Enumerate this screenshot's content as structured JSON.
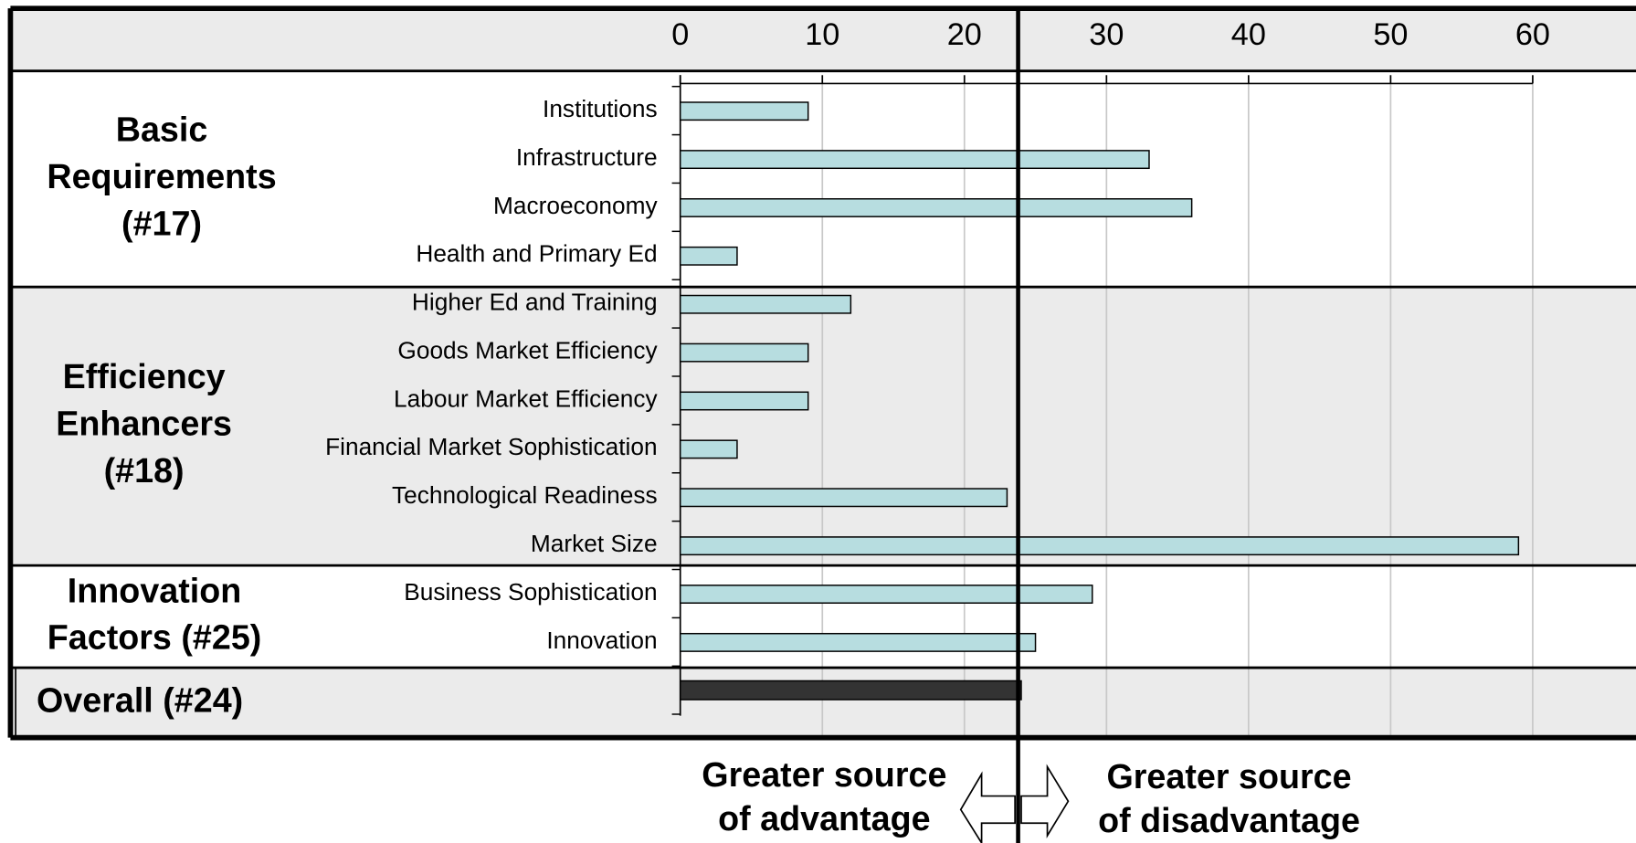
{
  "chart_data": {
    "type": "bar",
    "xlim": [
      0,
      60
    ],
    "xticks": [
      0,
      10,
      20,
      30,
      40,
      50,
      60
    ],
    "grid": true,
    "color": "#b7dde0",
    "groups": [
      {
        "label_lines": [
          "Basic",
          "Requirements",
          "(#17)"
        ],
        "categories": [
          "Institutions",
          "Infrastructure",
          "Macroeconomy",
          "Health and Primary Ed"
        ],
        "values": [
          9,
          33,
          36,
          4
        ]
      },
      {
        "label_lines": [
          "Efficiency",
          "Enhancers",
          "(#18)"
        ],
        "categories": [
          "Higher Ed and Training",
          "Goods Market Efficiency",
          "Labour Market Efficiency",
          "Financial Market Sophistication",
          "Technological Readiness",
          "Market Size"
        ],
        "values": [
          12,
          9,
          9,
          4,
          23,
          59
        ]
      },
      {
        "label_lines": [
          "Innovation",
          "Factors (#25)"
        ],
        "categories": [
          "Business Sophistication",
          "Innovation"
        ],
        "values": [
          29,
          25
        ]
      }
    ],
    "overall": {
      "label": "Overall (#24)",
      "value": 24,
      "color": "#333333"
    },
    "annotations": {
      "left": [
        "Greater source",
        "of advantage"
      ],
      "right": [
        "Greater source",
        "of disadvantage"
      ]
    }
  }
}
